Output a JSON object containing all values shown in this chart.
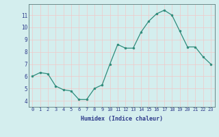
{
  "x": [
    0,
    1,
    2,
    3,
    4,
    5,
    6,
    7,
    8,
    9,
    10,
    11,
    12,
    13,
    14,
    15,
    16,
    17,
    18,
    19,
    20,
    21,
    22,
    23
  ],
  "y": [
    6.0,
    6.3,
    6.2,
    5.2,
    4.9,
    4.8,
    4.1,
    4.1,
    5.0,
    5.3,
    7.0,
    8.6,
    8.3,
    8.3,
    9.6,
    10.5,
    11.1,
    11.4,
    11.0,
    9.7,
    8.4,
    8.4,
    7.6,
    7.0
  ],
  "line_color": "#2e8b7a",
  "marker_color": "#2e8b7a",
  "bg_color": "#d4eeee",
  "grid_color": "#f0c8c8",
  "xlabel": "Humidex (Indice chaleur)",
  "ylabel_ticks": [
    4,
    5,
    6,
    7,
    8,
    9,
    10,
    11
  ],
  "xlim": [
    -0.5,
    23.5
  ],
  "ylim": [
    3.5,
    11.9
  ],
  "xtick_labels": [
    "0",
    "1",
    "2",
    "3",
    "4",
    "5",
    "6",
    "7",
    "8",
    "9",
    "10",
    "11",
    "12",
    "13",
    "14",
    "15",
    "16",
    "17",
    "18",
    "19",
    "20",
    "21",
    "22",
    "23"
  ],
  "font_color": "#2e3a8a",
  "tick_fontsize": 5.0,
  "xlabel_fontsize": 6.0
}
